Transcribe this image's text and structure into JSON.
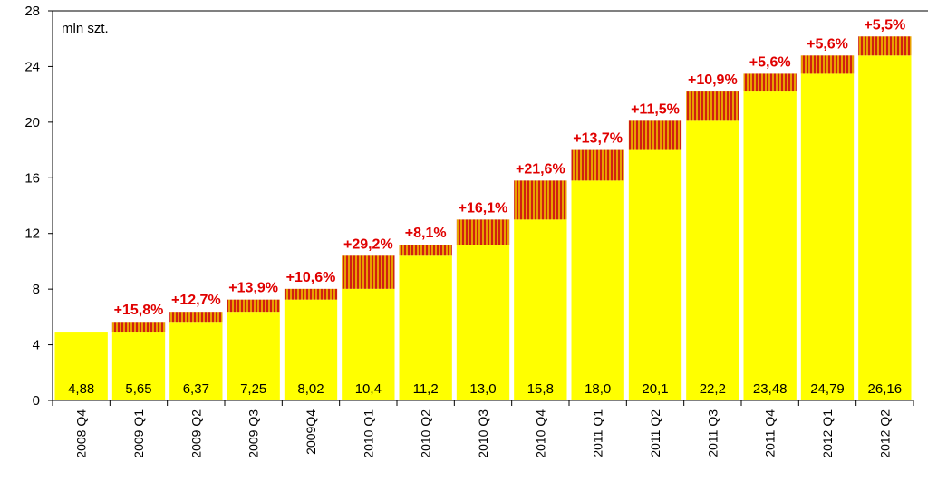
{
  "chart_data": {
    "type": "bar",
    "unit_label": "mln szt.",
    "categories": [
      "2008 Q4",
      "2009 Q1",
      "2009 Q2",
      "2009 Q3",
      "2009Q4",
      "2010 Q1",
      "2010 Q2",
      "2010 Q3",
      "2010 Q4",
      "2011 Q1",
      "2011 Q2",
      "2011 Q3",
      "2011 Q4",
      "2012 Q1",
      "2012 Q2"
    ],
    "values": [
      4.88,
      5.65,
      6.37,
      7.25,
      8.02,
      10.4,
      11.2,
      13.0,
      15.8,
      18.0,
      20.1,
      22.2,
      23.48,
      24.79,
      26.16
    ],
    "value_labels": [
      "4,88",
      "5,65",
      "6,37",
      "7,25",
      "8,02",
      "10,4",
      "11,2",
      "13,0",
      "15,8",
      "18,0",
      "20,1",
      "22,2",
      "23,48",
      "24,79",
      "26,16"
    ],
    "growth_labels": [
      "",
      "+15,8%",
      "+12,7%",
      "+13,9%",
      "+10,6%",
      "+29,2%",
      "+8,1%",
      "+16,1%",
      "+21,6%",
      "+13,7%",
      "+11,5%",
      "+10,9%",
      "+5,6%",
      "+5,6%",
      "+5,5%"
    ],
    "ylim": [
      0,
      28
    ],
    "yticks": [
      0,
      4,
      8,
      12,
      16,
      20,
      24,
      28
    ],
    "colors": {
      "bar": "#ffff00",
      "increment_stripe_a": "#e8a000",
      "increment_stripe_b": "#d02010",
      "growth_text": "#e00000",
      "axis": "#000000"
    }
  }
}
